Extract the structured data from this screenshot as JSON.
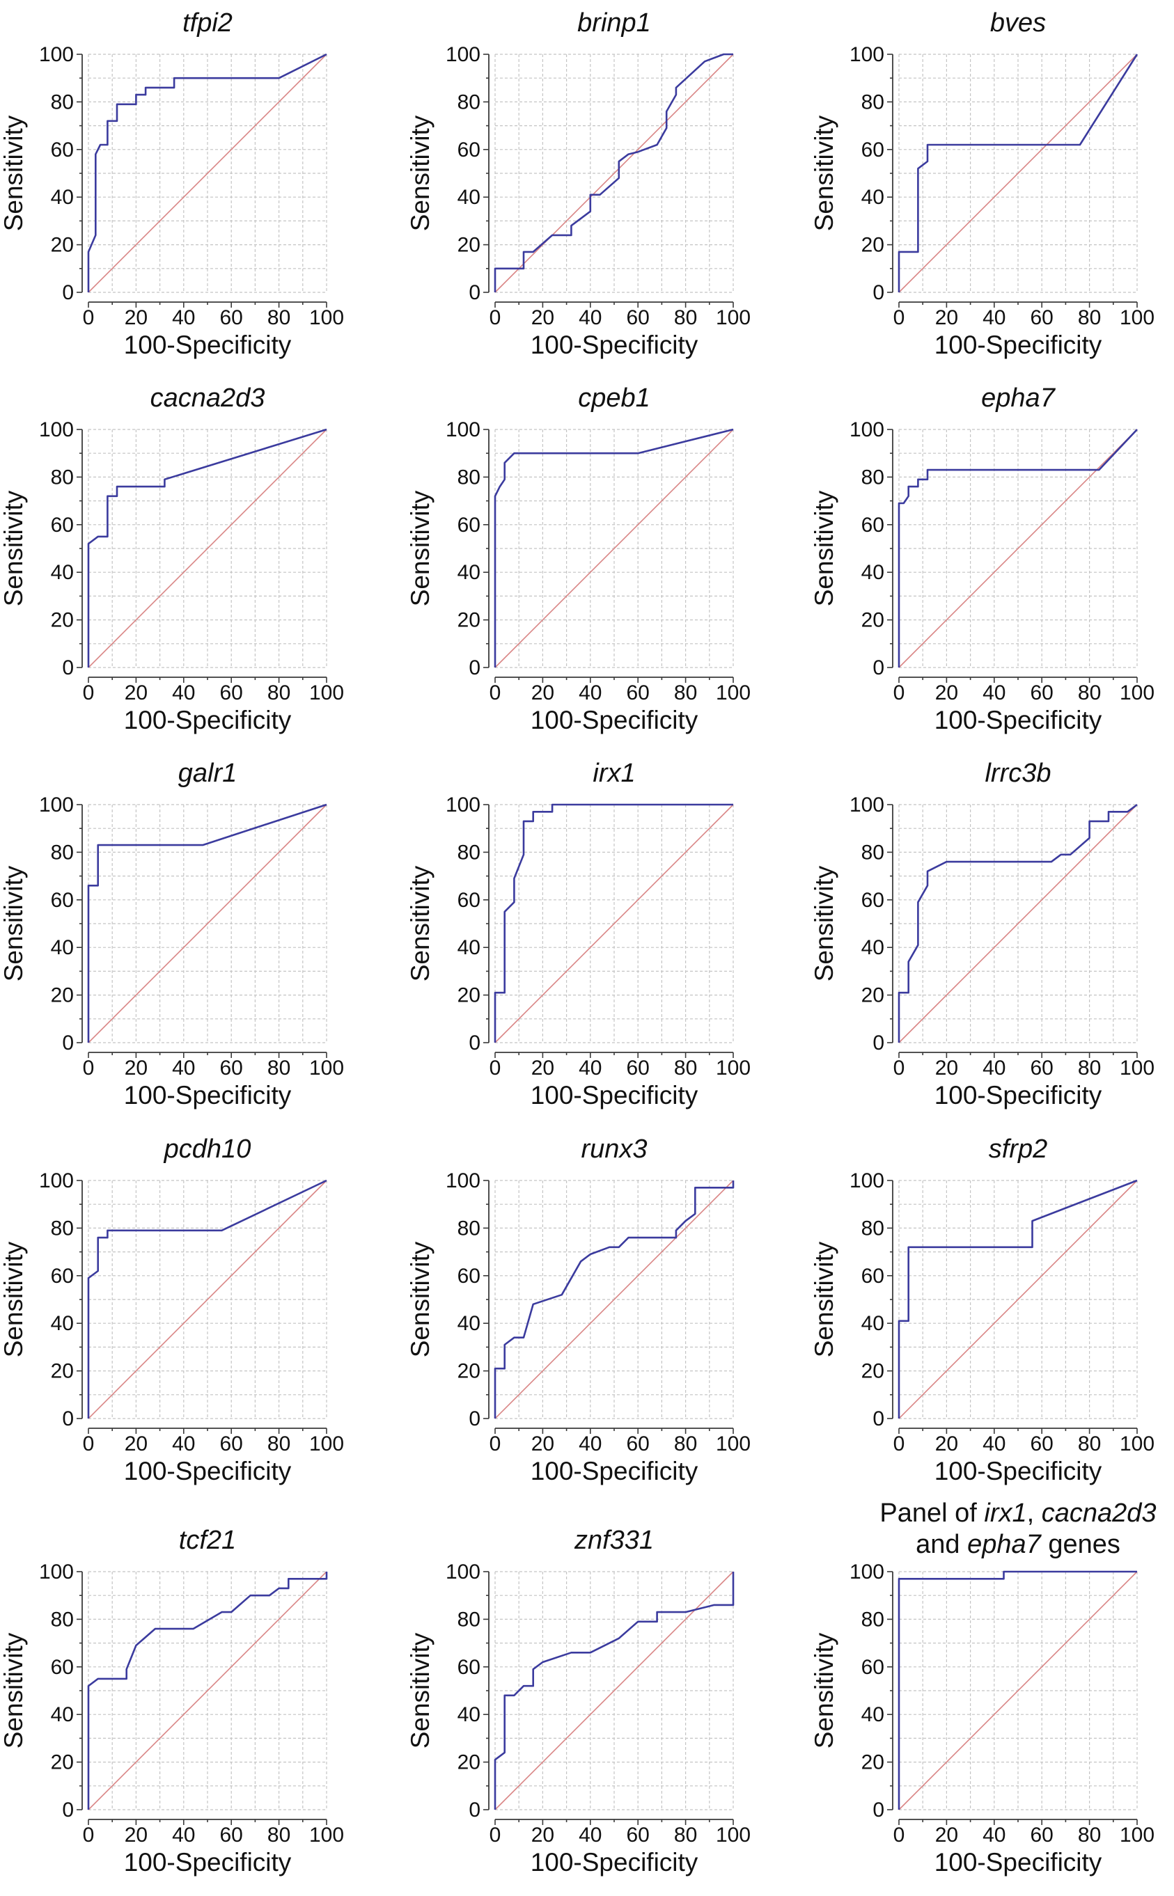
{
  "colors": {
    "roc_curve": "#3b3b9e",
    "reference_line": "#d98585"
  },
  "chart_data": [
    {
      "type": "line",
      "title": "tfpi2",
      "xlabel": "100-Specificity",
      "ylabel": "Sensitivity",
      "xlim": [
        0,
        100
      ],
      "ylim": [
        0,
        100
      ],
      "xticks": [
        0,
        20,
        40,
        60,
        80,
        100
      ],
      "yticks": [
        0,
        20,
        40,
        60,
        80,
        100
      ],
      "grid": true,
      "series": [
        {
          "x": [
            0,
            0,
            3,
            3,
            5,
            8,
            8,
            12,
            12,
            20,
            20,
            24,
            24,
            36,
            36,
            80,
            100
          ],
          "y": [
            0,
            17,
            24,
            58,
            62,
            62,
            72,
            72,
            79,
            79,
            83,
            83,
            86,
            86,
            90,
            90,
            100
          ]
        }
      ],
      "reference_line": {
        "x": [
          0,
          100
        ],
        "y": [
          0,
          100
        ]
      }
    },
    {
      "type": "line",
      "title": "brinp1",
      "xlabel": "100-Specificity",
      "ylabel": "Sensitivity",
      "xlim": [
        0,
        100
      ],
      "ylim": [
        0,
        100
      ],
      "xticks": [
        0,
        20,
        40,
        60,
        80,
        100
      ],
      "yticks": [
        0,
        20,
        40,
        60,
        80,
        100
      ],
      "grid": true,
      "series": [
        {
          "x": [
            0,
            0,
            12,
            12,
            16,
            24,
            32,
            32,
            40,
            40,
            44,
            52,
            52,
            56,
            60,
            68,
            72,
            72,
            76,
            76,
            88,
            96,
            100
          ],
          "y": [
            0,
            10,
            10,
            17,
            17,
            24,
            24,
            28,
            34,
            41,
            41,
            48,
            55,
            58,
            59,
            62,
            69,
            76,
            83,
            86,
            97,
            100,
            100
          ]
        }
      ],
      "reference_line": {
        "x": [
          0,
          100
        ],
        "y": [
          0,
          100
        ]
      }
    },
    {
      "type": "line",
      "title": "bves",
      "xlabel": "100-Specificity",
      "ylabel": "Sensitivity",
      "xlim": [
        0,
        100
      ],
      "ylim": [
        0,
        100
      ],
      "xticks": [
        0,
        20,
        40,
        60,
        80,
        100
      ],
      "yticks": [
        0,
        20,
        40,
        60,
        80,
        100
      ],
      "grid": true,
      "series": [
        {
          "x": [
            0,
            0,
            8,
            8,
            12,
            12,
            76,
            100
          ],
          "y": [
            0,
            17,
            17,
            52,
            55,
            62,
            62,
            100
          ]
        }
      ],
      "reference_line": {
        "x": [
          0,
          100
        ],
        "y": [
          0,
          100
        ]
      }
    },
    {
      "type": "line",
      "title": "cacna2d3",
      "xlabel": "100-Specificity",
      "ylabel": "Sensitivity",
      "xlim": [
        0,
        100
      ],
      "ylim": [
        0,
        100
      ],
      "xticks": [
        0,
        20,
        40,
        60,
        80,
        100
      ],
      "yticks": [
        0,
        20,
        40,
        60,
        80,
        100
      ],
      "grid": true,
      "series": [
        {
          "x": [
            0,
            0,
            4,
            8,
            8,
            12,
            12,
            32,
            32,
            100
          ],
          "y": [
            0,
            52,
            55,
            55,
            72,
            72,
            76,
            76,
            79,
            100
          ]
        }
      ],
      "reference_line": {
        "x": [
          0,
          100
        ],
        "y": [
          0,
          100
        ]
      }
    },
    {
      "type": "line",
      "title": "cpeb1",
      "xlabel": "100-Specificity",
      "ylabel": "Sensitivity",
      "xlim": [
        0,
        100
      ],
      "ylim": [
        0,
        100
      ],
      "xticks": [
        0,
        20,
        40,
        60,
        80,
        100
      ],
      "yticks": [
        0,
        20,
        40,
        60,
        80,
        100
      ],
      "grid": true,
      "series": [
        {
          "x": [
            0,
            0,
            2,
            4,
            4,
            8,
            60,
            100
          ],
          "y": [
            0,
            72,
            76,
            79,
            86,
            90,
            90,
            100
          ]
        }
      ],
      "reference_line": {
        "x": [
          0,
          100
        ],
        "y": [
          0,
          100
        ]
      }
    },
    {
      "type": "line",
      "title": "epha7",
      "xlabel": "100-Specificity",
      "ylabel": "Sensitivity",
      "xlim": [
        0,
        100
      ],
      "ylim": [
        0,
        100
      ],
      "xticks": [
        0,
        20,
        40,
        60,
        80,
        100
      ],
      "yticks": [
        0,
        20,
        40,
        60,
        80,
        100
      ],
      "grid": true,
      "series": [
        {
          "x": [
            0,
            0,
            2,
            4,
            4,
            8,
            8,
            12,
            12,
            84,
            100
          ],
          "y": [
            0,
            69,
            69,
            72,
            76,
            76,
            79,
            79,
            83,
            83,
            100
          ]
        }
      ],
      "reference_line": {
        "x": [
          0,
          100
        ],
        "y": [
          0,
          100
        ]
      }
    },
    {
      "type": "line",
      "title": "galr1",
      "xlabel": "100-Specificity",
      "ylabel": "Sensitivity",
      "xlim": [
        0,
        100
      ],
      "ylim": [
        0,
        100
      ],
      "xticks": [
        0,
        20,
        40,
        60,
        80,
        100
      ],
      "yticks": [
        0,
        20,
        40,
        60,
        80,
        100
      ],
      "grid": true,
      "series": [
        {
          "x": [
            0,
            0,
            4,
            4,
            48,
            100
          ],
          "y": [
            0,
            66,
            66,
            83,
            83,
            100
          ]
        }
      ],
      "reference_line": {
        "x": [
          0,
          100
        ],
        "y": [
          0,
          100
        ]
      }
    },
    {
      "type": "line",
      "title": "irx1",
      "xlabel": "100-Specificity",
      "ylabel": "Sensitivity",
      "xlim": [
        0,
        100
      ],
      "ylim": [
        0,
        100
      ],
      "xticks": [
        0,
        20,
        40,
        60,
        80,
        100
      ],
      "yticks": [
        0,
        20,
        40,
        60,
        80,
        100
      ],
      "grid": true,
      "series": [
        {
          "x": [
            0,
            0,
            4,
            4,
            8,
            8,
            12,
            12,
            16,
            16,
            24,
            24,
            100
          ],
          "y": [
            0,
            21,
            21,
            55,
            59,
            69,
            79,
            93,
            93,
            97,
            97,
            100,
            100
          ]
        }
      ],
      "reference_line": {
        "x": [
          0,
          100
        ],
        "y": [
          0,
          100
        ]
      }
    },
    {
      "type": "line",
      "title": "lrrc3b",
      "xlabel": "100-Specificity",
      "ylabel": "Sensitivity",
      "xlim": [
        0,
        100
      ],
      "ylim": [
        0,
        100
      ],
      "xticks": [
        0,
        20,
        40,
        60,
        80,
        100
      ],
      "yticks": [
        0,
        20,
        40,
        60,
        80,
        100
      ],
      "grid": true,
      "series": [
        {
          "x": [
            0,
            0,
            4,
            4,
            8,
            8,
            12,
            12,
            20,
            64,
            68,
            72,
            80,
            80,
            88,
            88,
            96,
            100
          ],
          "y": [
            0,
            21,
            21,
            34,
            41,
            59,
            66,
            72,
            76,
            76,
            79,
            79,
            86,
            93,
            93,
            97,
            97,
            100
          ]
        }
      ],
      "reference_line": {
        "x": [
          0,
          100
        ],
        "y": [
          0,
          100
        ]
      }
    },
    {
      "type": "line",
      "title": "pcdh10",
      "xlabel": "100-Specificity",
      "ylabel": "Sensitivity",
      "xlim": [
        0,
        100
      ],
      "ylim": [
        0,
        100
      ],
      "xticks": [
        0,
        20,
        40,
        60,
        80,
        100
      ],
      "yticks": [
        0,
        20,
        40,
        60,
        80,
        100
      ],
      "grid": true,
      "series": [
        {
          "x": [
            0,
            0,
            4,
            4,
            8,
            8,
            56,
            100
          ],
          "y": [
            0,
            59,
            62,
            76,
            76,
            79,
            79,
            100
          ]
        }
      ],
      "reference_line": {
        "x": [
          0,
          100
        ],
        "y": [
          0,
          100
        ]
      }
    },
    {
      "type": "line",
      "title": "runx3",
      "xlabel": "100-Specificity",
      "ylabel": "Sensitivity",
      "xlim": [
        0,
        100
      ],
      "ylim": [
        0,
        100
      ],
      "xticks": [
        0,
        20,
        40,
        60,
        80,
        100
      ],
      "yticks": [
        0,
        20,
        40,
        60,
        80,
        100
      ],
      "grid": true,
      "series": [
        {
          "x": [
            0,
            0,
            4,
            4,
            8,
            12,
            16,
            28,
            36,
            40,
            48,
            52,
            56,
            76,
            76,
            80,
            84,
            84,
            100,
            100
          ],
          "y": [
            0,
            21,
            21,
            31,
            34,
            34,
            48,
            52,
            66,
            69,
            72,
            72,
            76,
            76,
            79,
            83,
            86,
            97,
            97,
            100
          ]
        }
      ],
      "reference_line": {
        "x": [
          0,
          100
        ],
        "y": [
          0,
          100
        ]
      }
    },
    {
      "type": "line",
      "title": "sfrp2",
      "xlabel": "100-Specificity",
      "ylabel": "Sensitivity",
      "xlim": [
        0,
        100
      ],
      "ylim": [
        0,
        100
      ],
      "xticks": [
        0,
        20,
        40,
        60,
        80,
        100
      ],
      "yticks": [
        0,
        20,
        40,
        60,
        80,
        100
      ],
      "grid": true,
      "series": [
        {
          "x": [
            0,
            0,
            4,
            4,
            56,
            56,
            100
          ],
          "y": [
            0,
            41,
            41,
            72,
            72,
            83,
            100
          ]
        }
      ],
      "reference_line": {
        "x": [
          0,
          100
        ],
        "y": [
          0,
          100
        ]
      }
    },
    {
      "type": "line",
      "title": "tcf21",
      "xlabel": "100-Specificity",
      "ylabel": "Sensitivity",
      "xlim": [
        0,
        100
      ],
      "ylim": [
        0,
        100
      ],
      "xticks": [
        0,
        20,
        40,
        60,
        80,
        100
      ],
      "yticks": [
        0,
        20,
        40,
        60,
        80,
        100
      ],
      "grid": true,
      "series": [
        {
          "x": [
            0,
            0,
            4,
            16,
            16,
            20,
            28,
            44,
            56,
            60,
            68,
            76,
            80,
            84,
            84,
            100,
            100
          ],
          "y": [
            0,
            52,
            55,
            55,
            59,
            69,
            76,
            76,
            83,
            83,
            90,
            90,
            93,
            93,
            97,
            97,
            100
          ]
        }
      ],
      "reference_line": {
        "x": [
          0,
          100
        ],
        "y": [
          0,
          100
        ]
      }
    },
    {
      "type": "line",
      "title": "znf331",
      "xlabel": "100-Specificity",
      "ylabel": "Sensitivity",
      "xlim": [
        0,
        100
      ],
      "ylim": [
        0,
        100
      ],
      "xticks": [
        0,
        20,
        40,
        60,
        80,
        100
      ],
      "yticks": [
        0,
        20,
        40,
        60,
        80,
        100
      ],
      "grid": true,
      "series": [
        {
          "x": [
            0,
            0,
            4,
            4,
            8,
            12,
            16,
            16,
            20,
            32,
            40,
            52,
            60,
            68,
            68,
            80,
            92,
            100,
            100
          ],
          "y": [
            0,
            21,
            24,
            48,
            48,
            52,
            52,
            59,
            62,
            66,
            66,
            72,
            79,
            79,
            83,
            83,
            86,
            86,
            100
          ]
        }
      ],
      "reference_line": {
        "x": [
          0,
          100
        ],
        "y": [
          0,
          100
        ]
      }
    },
    {
      "type": "line",
      "title_lines": [
        [
          {
            "text": "Panel of ",
            "italic": false
          },
          {
            "text": "irx1",
            "italic": true
          },
          {
            "text": ", ",
            "italic": false
          },
          {
            "text": "cacna2d3",
            "italic": true
          }
        ],
        [
          {
            "text": "and ",
            "italic": false
          },
          {
            "text": "epha7",
            "italic": true
          },
          {
            "text": " genes",
            "italic": false
          }
        ]
      ],
      "xlabel": "100-Specificity",
      "ylabel": "Sensitivity",
      "xlim": [
        0,
        100
      ],
      "ylim": [
        0,
        100
      ],
      "xticks": [
        0,
        20,
        40,
        60,
        80,
        100
      ],
      "yticks": [
        0,
        20,
        40,
        60,
        80,
        100
      ],
      "grid": true,
      "series": [
        {
          "x": [
            0,
            0,
            44,
            44,
            100
          ],
          "y": [
            0,
            97,
            97,
            100,
            100
          ]
        }
      ],
      "reference_line": {
        "x": [
          0,
          100
        ],
        "y": [
          0,
          100
        ]
      }
    }
  ]
}
